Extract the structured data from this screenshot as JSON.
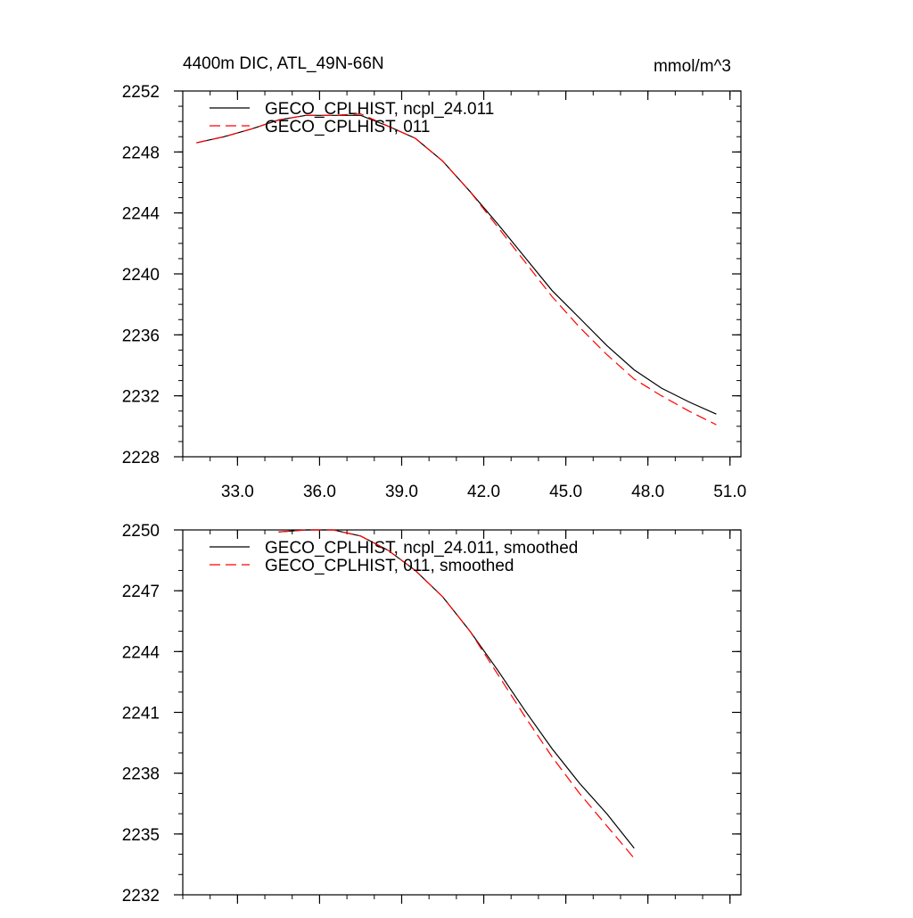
{
  "chart_data": [
    {
      "type": "line",
      "title": "4400m DIC, ATL_49N-66N",
      "units": "mmol/m^3",
      "x": [
        31.5,
        32.5,
        33.5,
        34.5,
        35.5,
        36.5,
        37.5,
        38.5,
        39.5,
        40.5,
        41.5,
        42.5,
        43.5,
        44.5,
        45.5,
        46.5,
        47.5,
        48.5,
        49.5,
        50.5
      ],
      "series": [
        {
          "name": "GECO_CPLHIST, ncpl_24.011",
          "color": "#000000",
          "dash": "none",
          "values": [
            2248.6,
            2249.0,
            2249.5,
            2250.1,
            2250.4,
            2250.4,
            2250.4,
            2249.7,
            2248.9,
            2247.4,
            2245.4,
            2243.3,
            2241.1,
            2238.9,
            2237.1,
            2235.3,
            2233.7,
            2232.5,
            2231.6,
            2230.8
          ]
        },
        {
          "name": "GECO_CPLHIST, 011",
          "color": "#ff0000",
          "dash": "12 6",
          "values": [
            2248.6,
            2249.0,
            2249.5,
            2250.1,
            2250.4,
            2250.4,
            2250.5,
            2249.7,
            2248.9,
            2247.4,
            2245.4,
            2243.1,
            2240.8,
            2238.5,
            2236.5,
            2234.7,
            2233.1,
            2232.0,
            2231.0,
            2230.1
          ]
        }
      ],
      "xlim": [
        31,
        51.4
      ],
      "xticks": [
        {
          "value": 33,
          "label": "33.0"
        },
        {
          "value": 36,
          "label": "36.0"
        },
        {
          "value": 39,
          "label": "39.0"
        },
        {
          "value": 42,
          "label": "42.0"
        },
        {
          "value": 45,
          "label": "45.0"
        },
        {
          "value": 48,
          "label": "48.0"
        },
        {
          "value": 51,
          "label": "51.0"
        }
      ],
      "ylim": [
        2228,
        2252
      ],
      "yticks": [
        2228,
        2232,
        2236,
        2240,
        2244,
        2248,
        2252
      ],
      "xminor": 1,
      "yminor": 1
    },
    {
      "type": "line",
      "x": [
        34.5,
        35.5,
        36.5,
        37.5,
        38.5,
        39.5,
        40.5,
        41.5,
        42.5,
        43.5,
        44.5,
        45.5,
        46.5,
        47.5
      ],
      "series": [
        {
          "name": "GECO_CPLHIST, ncpl_24.011, smoothed",
          "color": "#000000",
          "dash": "none",
          "values": [
            2249.9,
            2250.0,
            2250.0,
            2249.7,
            2249.0,
            2248.0,
            2246.7,
            2245.0,
            2243.1,
            2241.1,
            2239.2,
            2237.5,
            2236.0,
            2234.3
          ]
        },
        {
          "name": "GECO_CPLHIST, 011, smoothed",
          "color": "#ff0000",
          "dash": "12 6",
          "values": [
            2249.9,
            2250.0,
            2250.0,
            2249.7,
            2249.0,
            2248.0,
            2246.7,
            2245.0,
            2242.9,
            2240.8,
            2238.8,
            2237.0,
            2235.4,
            2233.8
          ]
        }
      ],
      "xlim": [
        31,
        51.4
      ],
      "xticks": [
        33,
        36,
        39,
        42,
        45,
        48,
        51
      ],
      "xticklabels": false,
      "ylim": [
        2232,
        2250
      ],
      "yticks": [
        2232,
        2235,
        2238,
        2241,
        2244,
        2247,
        2250
      ],
      "xminor": 1,
      "yminor": 1
    }
  ]
}
